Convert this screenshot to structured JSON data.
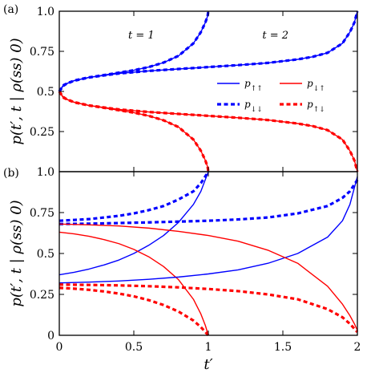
{
  "chart_data": [
    {
      "type": "line",
      "panel_label": "(a)",
      "ylabel": "p(t′, t | ρ(ss) 0)",
      "xlabel": "",
      "xlim": [
        0,
        2
      ],
      "ylim": [
        0,
        1
      ],
      "xticks": [
        0,
        0.5,
        1,
        1.5,
        2
      ],
      "yticks": [
        0.25,
        0.5,
        0.75,
        1.0
      ],
      "ytick_labels": [
        "0.25",
        "0.5",
        "0.75",
        "1.0"
      ],
      "annotations": [
        {
          "text": "t = 1",
          "x": 0.55,
          "y": 0.85
        },
        {
          "text": "t = 2",
          "x": 1.45,
          "y": 0.85
        }
      ],
      "series": [
        {
          "name": "p↑↑",
          "color": "#0000ff",
          "dash": "solid",
          "t": 1,
          "x": [
            0,
            0.02,
            0.05,
            0.1,
            0.2,
            0.3,
            0.4,
            0.5,
            0.6,
            0.7,
            0.8,
            0.9,
            0.95,
            0.98,
            0.995,
            1.0
          ],
          "values": [
            0.5,
            0.53,
            0.55,
            0.567,
            0.587,
            0.602,
            0.617,
            0.632,
            0.652,
            0.68,
            0.722,
            0.8,
            0.87,
            0.93,
            0.97,
            1.0
          ]
        },
        {
          "name": "p↓↓",
          "color": "#0000ff",
          "dash": "dashed",
          "t": 1,
          "x": [
            0,
            0.02,
            0.05,
            0.1,
            0.2,
            0.3,
            0.4,
            0.5,
            0.6,
            0.7,
            0.8,
            0.9,
            0.95,
            0.98,
            0.995,
            1.0
          ],
          "values": [
            0.5,
            0.53,
            0.55,
            0.567,
            0.587,
            0.602,
            0.617,
            0.632,
            0.652,
            0.68,
            0.722,
            0.8,
            0.87,
            0.93,
            0.97,
            1.0
          ]
        },
        {
          "name": "p↑↑",
          "color": "#0000ff",
          "dash": "solid",
          "t": 2,
          "x": [
            0,
            0.03,
            0.1,
            0.2,
            0.4,
            0.6,
            0.8,
            1.0,
            1.2,
            1.4,
            1.6,
            1.7,
            1.8,
            1.9,
            1.95,
            1.98,
            2.0
          ],
          "values": [
            0.5,
            0.54,
            0.568,
            0.588,
            0.612,
            0.628,
            0.64,
            0.652,
            0.664,
            0.678,
            0.7,
            0.716,
            0.741,
            0.8,
            0.87,
            0.93,
            1.0
          ]
        },
        {
          "name": "p↓↓",
          "color": "#0000ff",
          "dash": "dashed",
          "t": 2,
          "x": [
            0,
            0.03,
            0.1,
            0.2,
            0.4,
            0.6,
            0.8,
            1.0,
            1.2,
            1.4,
            1.6,
            1.7,
            1.8,
            1.9,
            1.95,
            1.98,
            2.0
          ],
          "values": [
            0.5,
            0.54,
            0.568,
            0.588,
            0.612,
            0.628,
            0.64,
            0.652,
            0.664,
            0.678,
            0.7,
            0.716,
            0.741,
            0.8,
            0.87,
            0.93,
            1.0
          ]
        },
        {
          "name": "p↓↑",
          "color": "#ff0000",
          "dash": "solid",
          "t": 1,
          "x": [
            0,
            0.02,
            0.05,
            0.1,
            0.2,
            0.3,
            0.4,
            0.5,
            0.6,
            0.7,
            0.8,
            0.9,
            0.95,
            0.98,
            0.995,
            1.0
          ],
          "values": [
            0.5,
            0.47,
            0.45,
            0.433,
            0.413,
            0.398,
            0.383,
            0.368,
            0.348,
            0.32,
            0.278,
            0.2,
            0.13,
            0.07,
            0.03,
            0.0
          ]
        },
        {
          "name": "p↑↓",
          "color": "#ff0000",
          "dash": "dashed",
          "t": 1,
          "x": [
            0,
            0.02,
            0.05,
            0.1,
            0.2,
            0.3,
            0.4,
            0.5,
            0.6,
            0.7,
            0.8,
            0.9,
            0.95,
            0.98,
            0.995,
            1.0
          ],
          "values": [
            0.5,
            0.47,
            0.45,
            0.433,
            0.413,
            0.398,
            0.383,
            0.368,
            0.348,
            0.32,
            0.278,
            0.2,
            0.13,
            0.07,
            0.03,
            0.0
          ]
        },
        {
          "name": "p↓↑",
          "color": "#ff0000",
          "dash": "solid",
          "t": 2,
          "x": [
            0,
            0.03,
            0.1,
            0.2,
            0.4,
            0.6,
            0.8,
            1.0,
            1.2,
            1.4,
            1.6,
            1.7,
            1.8,
            1.9,
            1.95,
            1.98,
            2.0
          ],
          "values": [
            0.5,
            0.46,
            0.432,
            0.412,
            0.388,
            0.372,
            0.36,
            0.348,
            0.336,
            0.322,
            0.3,
            0.284,
            0.259,
            0.2,
            0.13,
            0.07,
            0.0
          ]
        },
        {
          "name": "p↑↓",
          "color": "#ff0000",
          "dash": "dashed",
          "t": 2,
          "x": [
            0,
            0.03,
            0.1,
            0.2,
            0.4,
            0.6,
            0.8,
            1.0,
            1.2,
            1.4,
            1.6,
            1.7,
            1.8,
            1.9,
            1.95,
            1.98,
            2.0
          ],
          "values": [
            0.5,
            0.46,
            0.432,
            0.412,
            0.388,
            0.372,
            0.36,
            0.348,
            0.336,
            0.322,
            0.3,
            0.284,
            0.259,
            0.2,
            0.13,
            0.07,
            0.0
          ]
        }
      ],
      "legend": {
        "placement": "right",
        "entries": [
          {
            "label": "p↑↑",
            "color": "#0000ff",
            "dash": "solid"
          },
          {
            "label": "p↓↑",
            "color": "#ff0000",
            "dash": "solid"
          },
          {
            "label": "p↓↓",
            "color": "#0000ff",
            "dash": "dashed"
          },
          {
            "label": "p↑↓",
            "color": "#ff0000",
            "dash": "dashed"
          }
        ]
      },
      "grid": false
    },
    {
      "type": "line",
      "panel_label": "(b)",
      "ylabel": "p(t′, t | ρ(ss) 0)",
      "xlabel": "t′",
      "xlim": [
        0,
        2
      ],
      "ylim": [
        0,
        1
      ],
      "xticks": [
        0,
        0.5,
        1,
        1.5,
        2
      ],
      "xtick_labels": [
        "0",
        "0.5",
        "1",
        "1.5",
        "2"
      ],
      "yticks": [
        0,
        0.25,
        0.5,
        0.75,
        1.0
      ],
      "ytick_labels": [
        "0",
        "0.25",
        "0.5",
        "0.75",
        "1.0"
      ],
      "series": [
        {
          "name": "p↑↑",
          "color": "#0000ff",
          "dash": "solid",
          "t": 1,
          "x": [
            0,
            0.1,
            0.2,
            0.3,
            0.4,
            0.5,
            0.6,
            0.7,
            0.8,
            0.9,
            0.95,
            1.0
          ],
          "values": [
            0.37,
            0.385,
            0.405,
            0.43,
            0.46,
            0.5,
            0.55,
            0.61,
            0.69,
            0.8,
            0.88,
            1.0
          ]
        },
        {
          "name": "p↓↓",
          "color": "#0000ff",
          "dash": "dashed",
          "t": 1,
          "x": [
            0,
            0.1,
            0.2,
            0.3,
            0.4,
            0.5,
            0.6,
            0.7,
            0.8,
            0.9,
            0.95,
            1.0
          ],
          "values": [
            0.7,
            0.705,
            0.71,
            0.72,
            0.73,
            0.745,
            0.765,
            0.79,
            0.83,
            0.88,
            0.93,
            1.0
          ]
        },
        {
          "name": "p↓↑",
          "color": "#ff0000",
          "dash": "solid",
          "t": 1,
          "x": [
            0,
            0.1,
            0.2,
            0.3,
            0.4,
            0.5,
            0.6,
            0.7,
            0.8,
            0.9,
            0.95,
            0.98,
            1.0
          ],
          "values": [
            0.63,
            0.62,
            0.605,
            0.585,
            0.56,
            0.525,
            0.48,
            0.42,
            0.34,
            0.22,
            0.13,
            0.06,
            0.0
          ]
        },
        {
          "name": "p↑↓",
          "color": "#ff0000",
          "dash": "dashed",
          "t": 1,
          "x": [
            0,
            0.1,
            0.2,
            0.3,
            0.4,
            0.5,
            0.6,
            0.7,
            0.8,
            0.9,
            0.95,
            0.98,
            1.0
          ],
          "values": [
            0.29,
            0.285,
            0.278,
            0.268,
            0.255,
            0.238,
            0.215,
            0.185,
            0.145,
            0.09,
            0.05,
            0.02,
            0.0
          ]
        },
        {
          "name": "p↑↑",
          "color": "#0000ff",
          "dash": "solid",
          "t": 2,
          "x": [
            0,
            0.2,
            0.4,
            0.6,
            0.8,
            1.0,
            1.2,
            1.4,
            1.6,
            1.8,
            1.9,
            1.95,
            2.0
          ],
          "values": [
            0.32,
            0.325,
            0.332,
            0.342,
            0.356,
            0.375,
            0.4,
            0.44,
            0.5,
            0.6,
            0.7,
            0.8,
            0.97
          ]
        },
        {
          "name": "p↓↓",
          "color": "#0000ff",
          "dash": "dashed",
          "t": 2,
          "x": [
            0,
            0.2,
            0.4,
            0.6,
            0.8,
            1.0,
            1.2,
            1.4,
            1.6,
            1.8,
            1.9,
            1.95,
            2.0
          ],
          "values": [
            0.68,
            0.682,
            0.686,
            0.69,
            0.695,
            0.7,
            0.708,
            0.72,
            0.745,
            0.79,
            0.84,
            0.88,
            0.95
          ]
        },
        {
          "name": "p↓↑",
          "color": "#ff0000",
          "dash": "solid",
          "t": 2,
          "x": [
            0,
            0.2,
            0.4,
            0.6,
            0.8,
            1.0,
            1.2,
            1.4,
            1.6,
            1.8,
            1.9,
            1.95,
            1.98,
            2.0
          ],
          "values": [
            0.68,
            0.675,
            0.668,
            0.655,
            0.635,
            0.61,
            0.575,
            0.52,
            0.44,
            0.3,
            0.19,
            0.12,
            0.07,
            0.03
          ]
        },
        {
          "name": "p↑↓",
          "color": "#ff0000",
          "dash": "dashed",
          "t": 2,
          "x": [
            0,
            0.2,
            0.4,
            0.6,
            0.8,
            1.0,
            1.2,
            1.4,
            1.6,
            1.8,
            1.9,
            1.95,
            1.98,
            2.0
          ],
          "values": [
            0.31,
            0.308,
            0.305,
            0.3,
            0.293,
            0.283,
            0.27,
            0.25,
            0.22,
            0.16,
            0.11,
            0.07,
            0.04,
            0.02
          ]
        }
      ],
      "grid": false
    }
  ]
}
